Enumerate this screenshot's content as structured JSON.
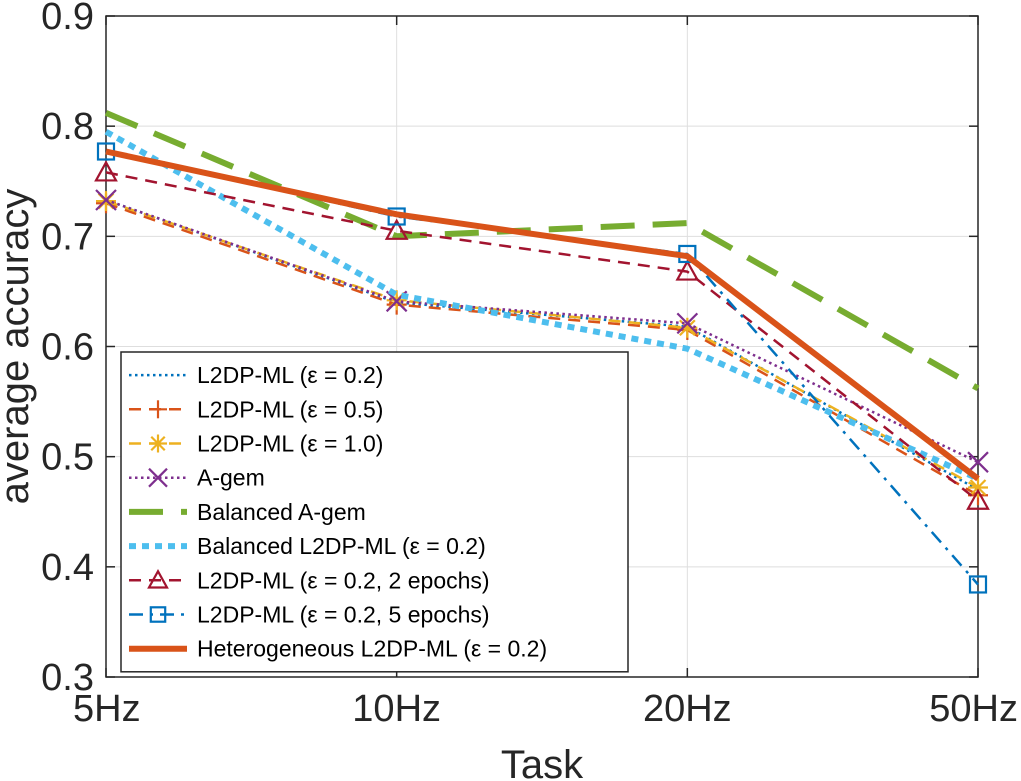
{
  "chart_data": {
    "type": "line",
    "title": "",
    "xlabel": "Task",
    "ylabel": "average accuracy",
    "categories": [
      "5Hz",
      "10Hz",
      "20Hz",
      "50Hz"
    ],
    "ylim": [
      0.3,
      0.9
    ],
    "yticks": [
      0.3,
      0.4,
      0.5,
      0.6,
      0.7,
      0.8,
      0.9
    ],
    "ytick_labels": [
      "0.3",
      "0.4",
      "0.5",
      "0.6",
      "0.7",
      "0.8",
      "0.9"
    ],
    "grid": true,
    "legend_position": "bottom-left",
    "series": [
      {
        "id": "l2dp-eps02",
        "name": "L2DP-ML (ε = 0.2)",
        "values": [
          0.733,
          0.64,
          0.618,
          0.47
        ],
        "color": "#0072BD",
        "dash": "dotted",
        "marker": "none",
        "width": "normal"
      },
      {
        "id": "l2dp-eps05",
        "name": "L2DP-ML (ε = 0.5)",
        "values": [
          0.73,
          0.638,
          0.615,
          0.465
        ],
        "color": "#D95319",
        "dash": "dashed",
        "marker": "plus",
        "width": "normal"
      },
      {
        "id": "l2dp-eps10",
        "name": "L2DP-ML (ε = 1.0)",
        "values": [
          0.732,
          0.642,
          0.617,
          0.472
        ],
        "color": "#EDB120",
        "dash": "dashed",
        "marker": "asterisk",
        "width": "normal"
      },
      {
        "id": "agem",
        "name": "A-gem",
        "values": [
          0.733,
          0.641,
          0.621,
          0.495
        ],
        "color": "#7E2F8E",
        "dash": "dotted",
        "marker": "x",
        "width": "normal"
      },
      {
        "id": "balanced-agem",
        "name": "Balanced A-gem",
        "values": [
          0.812,
          0.7,
          0.712,
          0.562
        ],
        "color": "#77AC30",
        "dash": "longdash",
        "marker": "none",
        "width": "thick"
      },
      {
        "id": "balanced-l2dp",
        "name": "Balanced L2DP-ML (ε = 0.2)",
        "values": [
          0.795,
          0.647,
          0.598,
          0.48
        ],
        "color": "#4DBEEE",
        "dash": "dotted",
        "marker": "none",
        "width": "thick"
      },
      {
        "id": "l2dp-2ep",
        "name": "L2DP-ML (ε = 0.2, 2 epochs)",
        "values": [
          0.758,
          0.705,
          0.668,
          0.46
        ],
        "color": "#A2142F",
        "dash": "dashed",
        "marker": "triangle",
        "width": "normal"
      },
      {
        "id": "l2dp-5ep",
        "name": "L2DP-ML (ε = 0.2, 5 epochs)",
        "values": [
          0.777,
          0.718,
          0.684,
          0.384
        ],
        "color": "#0072BD",
        "dash": "dashdot",
        "marker": "square",
        "width": "normal"
      },
      {
        "id": "hetero",
        "name": "Heterogeneous L2DP-ML (ε = 0.2)",
        "values": [
          0.777,
          0.72,
          0.682,
          0.48
        ],
        "color": "#D95319",
        "dash": "solid",
        "marker": "none",
        "width": "thick"
      }
    ]
  }
}
